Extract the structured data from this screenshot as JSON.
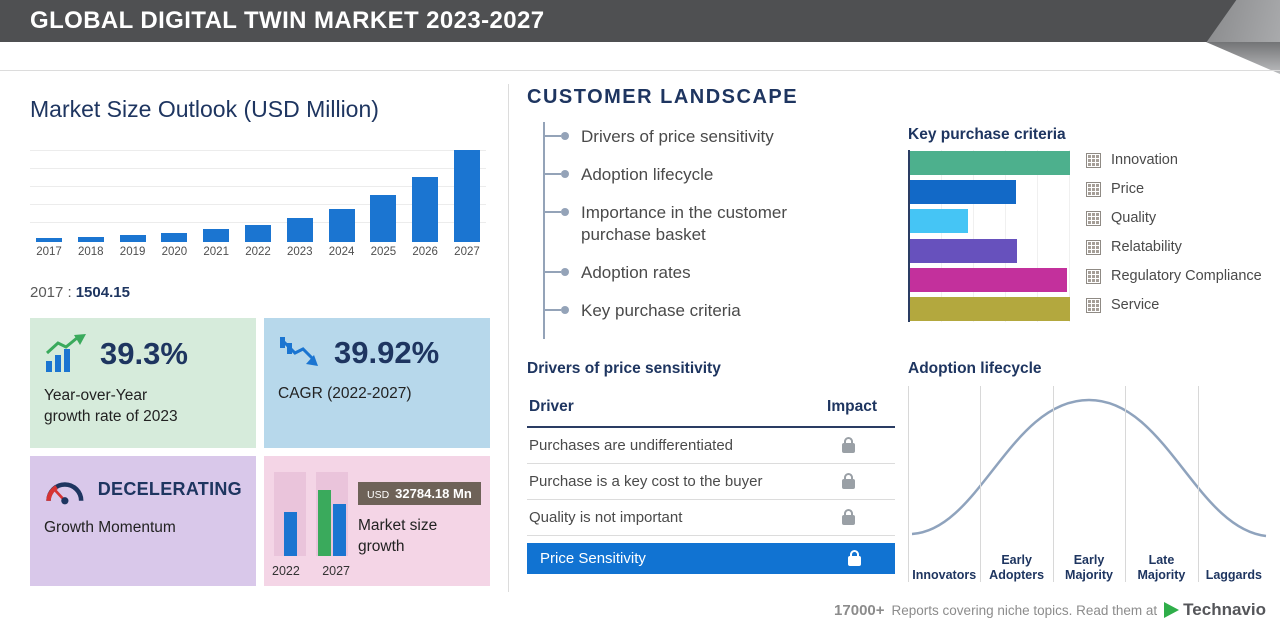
{
  "header": {
    "title": "GLOBAL DIGITAL TWIN MARKET 2023-2027"
  },
  "market_size": {
    "title": "Market Size Outlook (USD Million)",
    "base_year_label": "2017 :",
    "base_year_value": "1504.15"
  },
  "cards": {
    "yoy": {
      "value": "39.3%",
      "line1": "Year-over-Year",
      "line2": "growth rate of 2023",
      "bg": "#d6ebdb"
    },
    "cagr": {
      "value": "39.92%",
      "label": "CAGR  (2022-2027)",
      "bg": "#b7d8eb"
    },
    "momentum": {
      "value": "DECELERATING",
      "label": "Growth Momentum",
      "bg": "#d9c8ea"
    },
    "size_growth": {
      "badge_currency": "USD",
      "badge_value": "32784.18 Mn",
      "label_line1": "Market size",
      "label_line2": "growth",
      "year_start": "2022",
      "year_end": "2027",
      "bg": "#f4d5e6"
    }
  },
  "customer_landscape": {
    "title": "CUSTOMER LANDSCAPE",
    "items": [
      "Drivers of price sensitivity",
      "Adoption lifecycle",
      "Importance in the customer purchase basket",
      "Adoption rates",
      "Key purchase criteria"
    ]
  },
  "price_sensitivity_table": {
    "title": "Drivers of price sensitivity",
    "col_driver": "Driver",
    "col_impact": "Impact",
    "rows": [
      "Purchases are undifferentiated",
      "Purchase is a key cost to the buyer",
      "Quality is not important"
    ],
    "highlight_row": "Price Sensitivity",
    "highlight_color": "#1173d2"
  },
  "footer": {
    "stat": "17000+",
    "text": "Reports covering niche topics. Read them at",
    "brand": "Technavio",
    "brand_green": "#2fae4a"
  },
  "chart_data": [
    {
      "type": "bar",
      "title": "Market Size Outlook (USD Million)",
      "categories": [
        "2017",
        "2018",
        "2019",
        "2020",
        "2021",
        "2022",
        "2023",
        "2024",
        "2025",
        "2026",
        "2027"
      ],
      "values": [
        1504.15,
        2100,
        2930,
        4090,
        5710,
        7520,
        10475,
        14630,
        20440,
        28560,
        40304
      ],
      "bar_color": "#1b75d1",
      "ylabel": "USD Million",
      "grid": "horizontal"
    },
    {
      "type": "bar",
      "orientation": "horizontal",
      "title": "Key purchase criteria",
      "series": [
        {
          "name": "Innovation",
          "value": 100,
          "color": "#4db08d"
        },
        {
          "name": "Price",
          "value": 66,
          "color": "#1269c7"
        },
        {
          "name": "Quality",
          "value": 36,
          "color": "#45c5f5"
        },
        {
          "name": "Relatability",
          "value": 67,
          "color": "#6751bd"
        },
        {
          "name": "Regulatory Compliance",
          "value": 98,
          "color": "#c3309c"
        },
        {
          "name": "Service",
          "value": 100,
          "color": "#b3a83e"
        }
      ],
      "legend_position": "right",
      "axis_range": [
        0,
        100
      ]
    },
    {
      "type": "line",
      "title": "Adoption lifecycle",
      "shape": "bell-curve",
      "stages": [
        "Innovators",
        "Early Adopters",
        "Early Majority",
        "Late Majority",
        "Laggards"
      ],
      "line_color": "#8fa3bd"
    },
    {
      "type": "bar",
      "title": "Market size growth",
      "categories": [
        "2022",
        "2027"
      ],
      "annotation": "USD 32784.18 Mn"
    }
  ]
}
